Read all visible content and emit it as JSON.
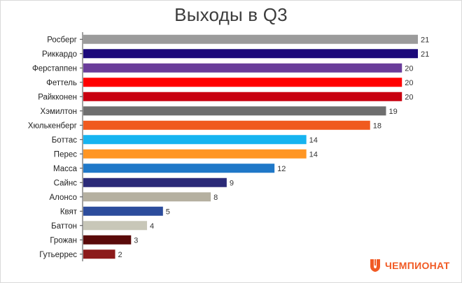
{
  "chart_data": {
    "type": "bar",
    "orientation": "horizontal",
    "title": "Выходы в Q3",
    "xlabel": "",
    "ylabel": "",
    "xlim": [
      0,
      21
    ],
    "grid": false,
    "legend": "none",
    "categories": [
      "Росберг",
      "Риккардо",
      "Ферстаппен",
      "Феттель",
      "Райкконен",
      "Хэмилтон",
      "Хюлькенберг",
      "Боттас",
      "Перес",
      "Масса",
      "Сайнс",
      "Алонсо",
      "Квят",
      "Баттон",
      "Грожан",
      "Гутьеррес"
    ],
    "values": [
      21,
      21,
      20,
      20,
      20,
      19,
      18,
      14,
      14,
      12,
      9,
      8,
      5,
      4,
      3,
      2
    ],
    "colors": [
      "#9b9b9b",
      "#1c0a7a",
      "#6a3d9a",
      "#ff0000",
      "#c8000f",
      "#6e6e6e",
      "#f05a1e",
      "#16b4f0",
      "#ff9624",
      "#1f78c8",
      "#2b2a78",
      "#b5b0a0",
      "#2c4c9c",
      "#c8c7b8",
      "#5a0a0a",
      "#8c1a1a"
    ]
  },
  "brand": {
    "name": "ЧЕМПИОНАТ",
    "color": "#f15a24",
    "icon": "championat-logo-icon"
  }
}
